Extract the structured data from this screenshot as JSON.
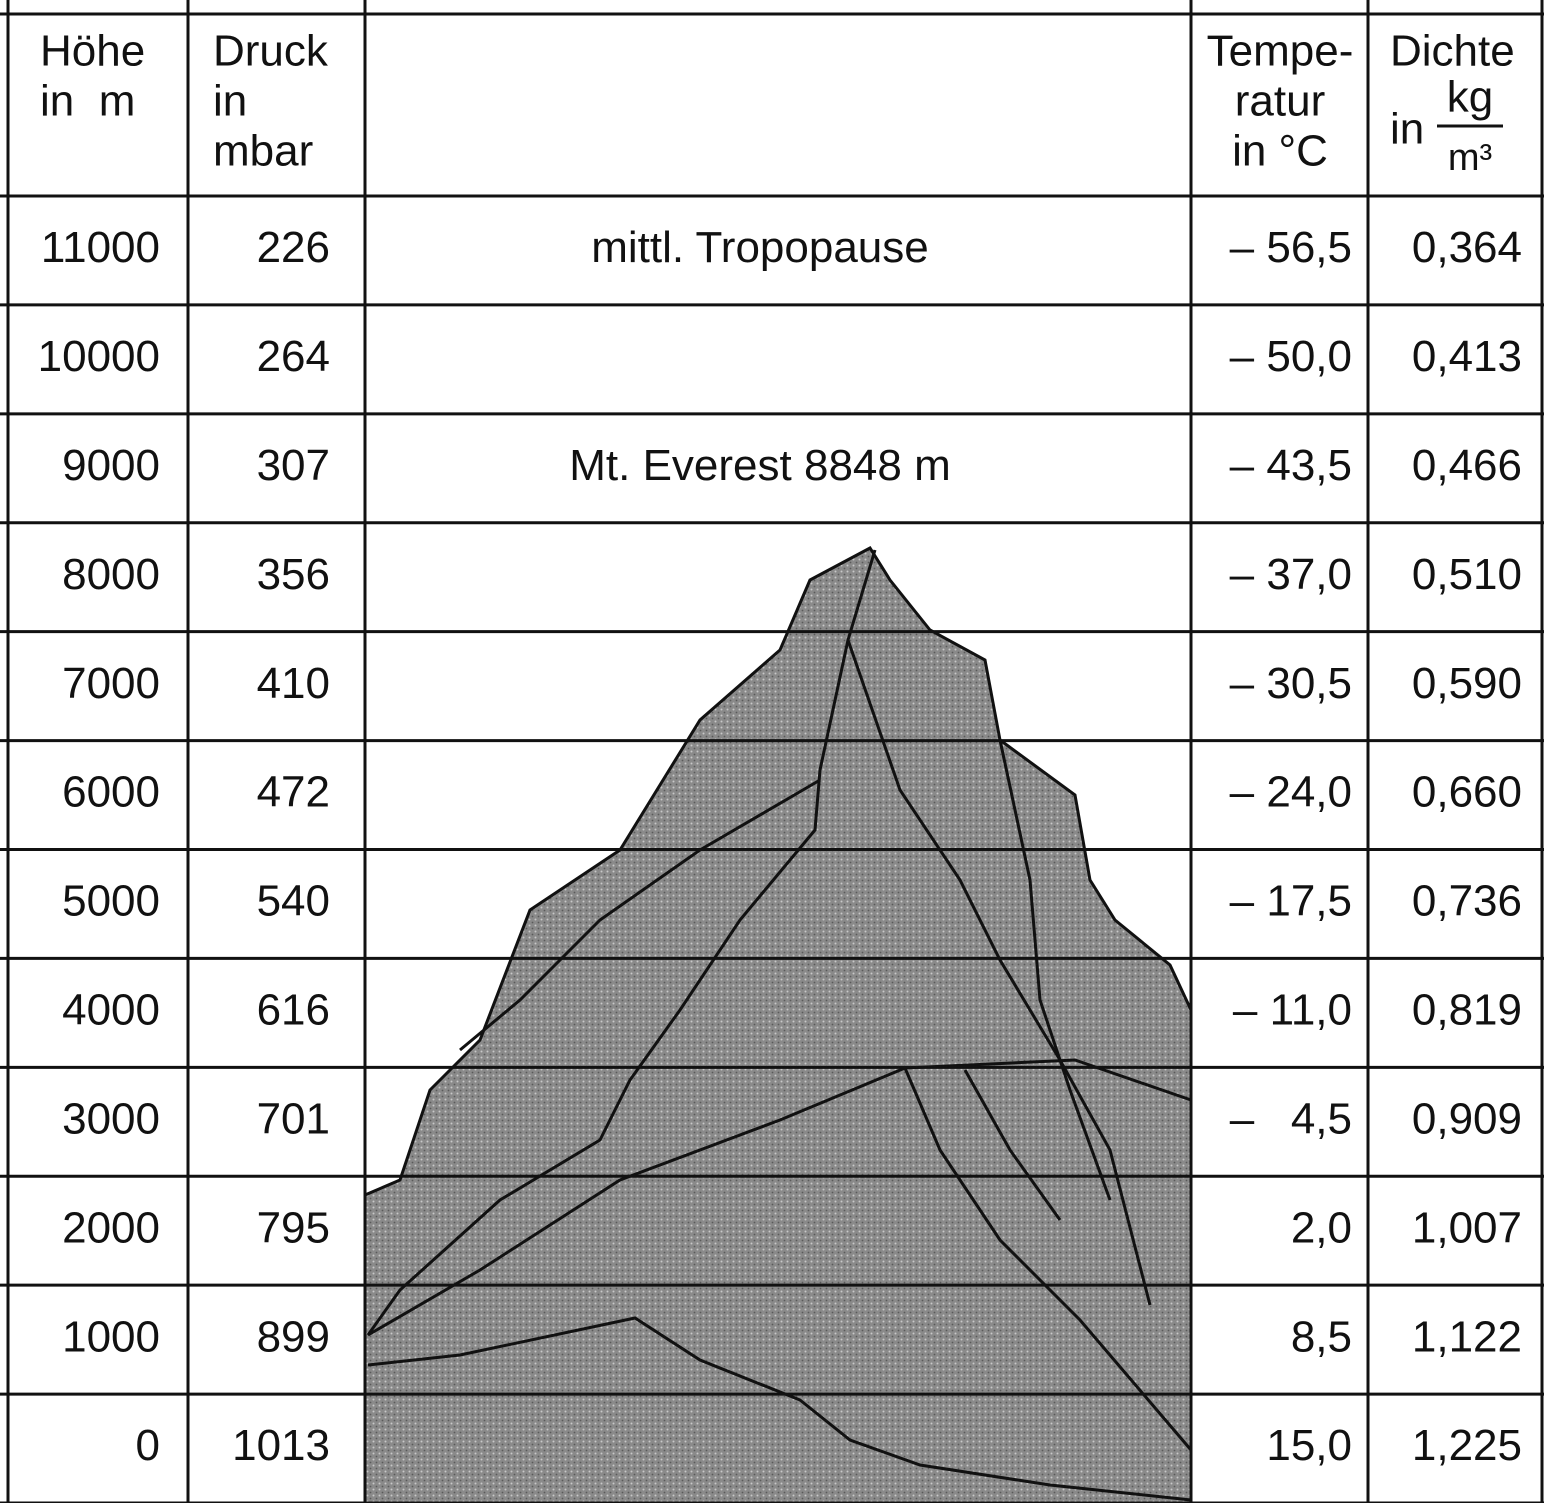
{
  "header": {
    "columns": [
      {
        "lines": [
          "Höhe",
          "in  m"
        ]
      },
      {
        "lines": [
          "Druck",
          "in",
          "mbar"
        ]
      },
      {
        "lines": [
          "Tempe-",
          "ratur",
          "in °C"
        ]
      },
      {
        "lines": [
          "Dichte"
        ],
        "prefix": "in",
        "numerator": "kg",
        "denominator": "m³"
      }
    ]
  },
  "table": {
    "rows": [
      {
        "height": "11000",
        "pressure": "226",
        "note": "mittl. Tropopause",
        "temperature": "– 56,5",
        "density": "0,364"
      },
      {
        "height": "10000",
        "pressure": "264",
        "temperature": "– 50,0",
        "density": "0,413"
      },
      {
        "height": "9000",
        "pressure": "307",
        "note": "Mt. Everest 8848 m",
        "temperature": "– 43,5",
        "density": "0,466"
      },
      {
        "height": "8000",
        "pressure": "356",
        "temperature": "– 37,0",
        "density": "0,510"
      },
      {
        "height": "7000",
        "pressure": "410",
        "temperature": "– 30,5",
        "density": "0,590"
      },
      {
        "height": "6000",
        "pressure": "472",
        "temperature": "– 24,0",
        "density": "0,660"
      },
      {
        "height": "5000",
        "pressure": "540",
        "temperature": "– 17,5",
        "density": "0,736"
      },
      {
        "height": "4000",
        "pressure": "616",
        "temperature": "– 11,0",
        "density": "0,819"
      },
      {
        "height": "3000",
        "pressure": "701",
        "temperature": "–   4,5",
        "density": "0,909"
      },
      {
        "height": "2000",
        "pressure": "795",
        "temperature": "2,0",
        "density": "1,007"
      },
      {
        "height": "1000",
        "pressure": "899",
        "temperature": "8,5",
        "density": "1,122"
      },
      {
        "height": "0",
        "pressure": "1013",
        "temperature": "15,0",
        "density": "1,225"
      }
    ]
  }
}
